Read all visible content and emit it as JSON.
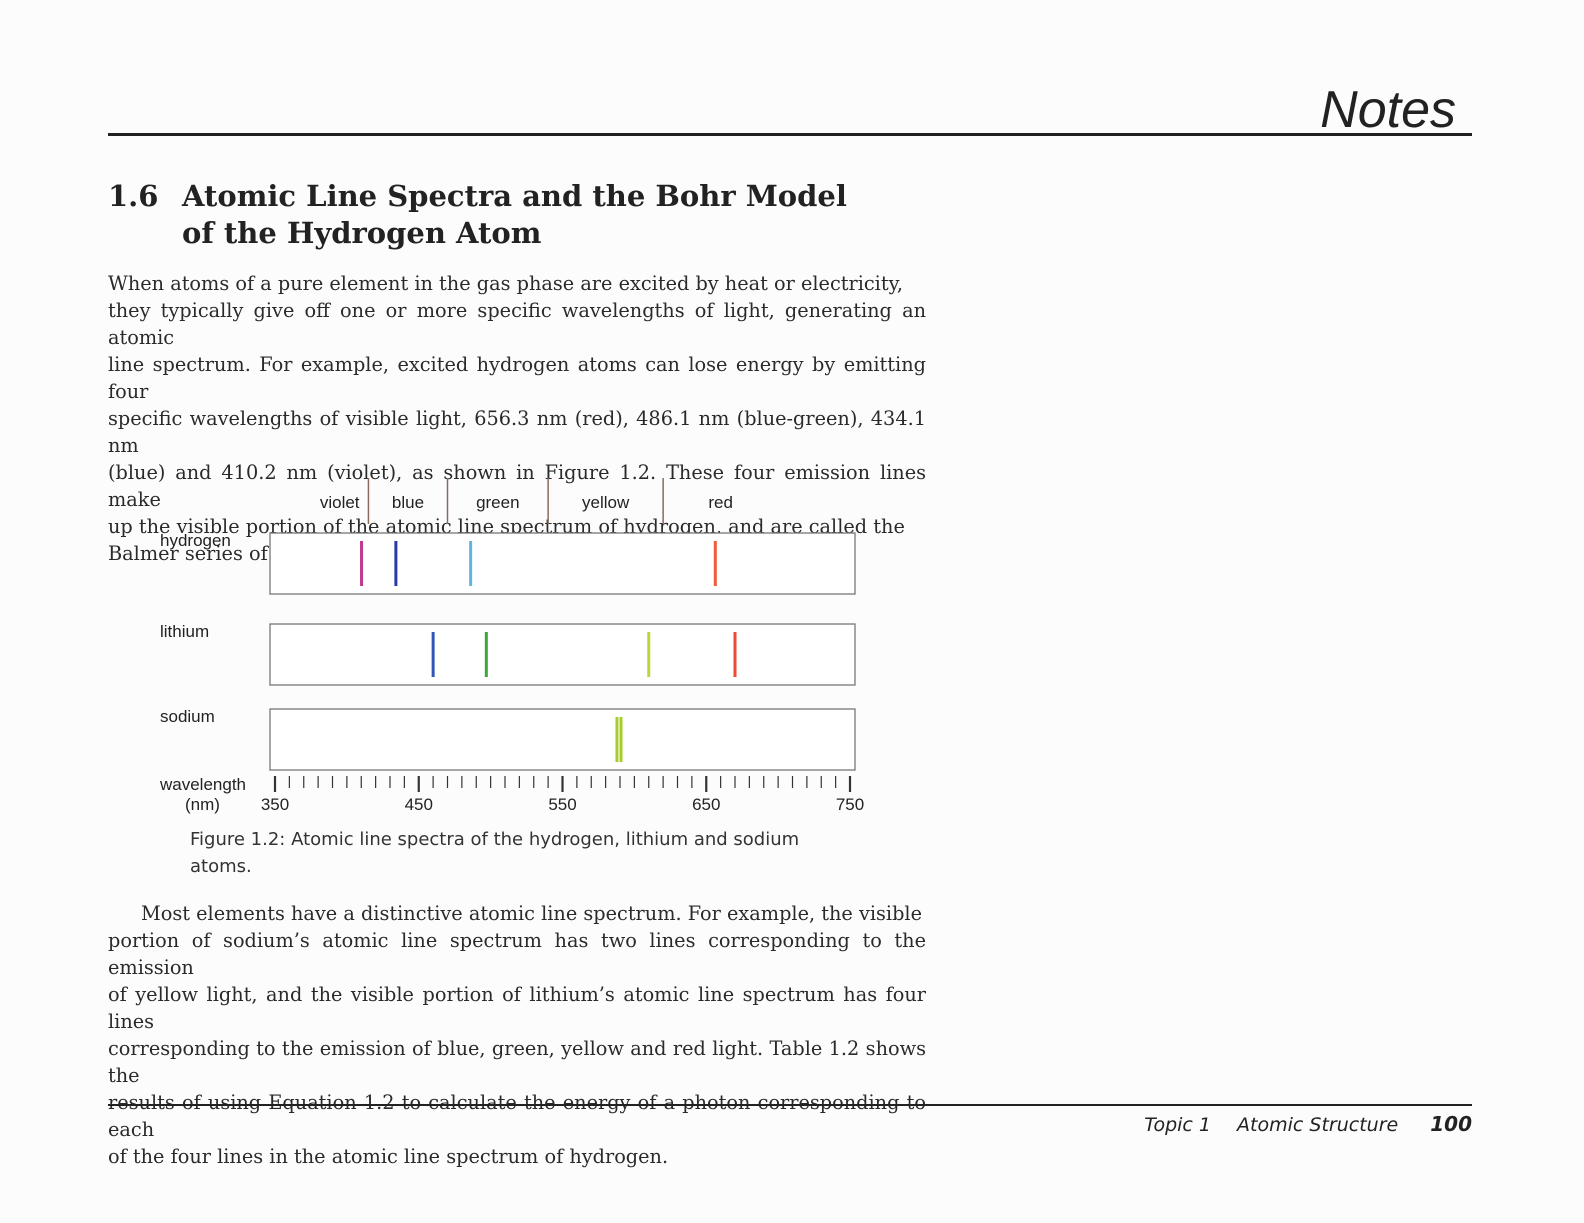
{
  "header": {
    "notes_title": "Notes"
  },
  "section": {
    "number": "1.6",
    "title_line1": "Atomic Line Spectra and the Bohr Model",
    "title_line2": "of the Hydrogen Atom"
  },
  "paragraph1": [
    "When atoms of a pure element in the gas phase are excited by heat or electricity,",
    "they typically give off one or more specific wavelengths of light, generating an atomic",
    "line spectrum. For example, excited hydrogen atoms can lose energy by emitting four",
    "specific wavelengths of visible light, 656.3 nm (red), 486.1 nm (blue-green), 434.1 nm",
    "(blue) and 410.2 nm (violet), as shown in Figure 1.2. These four emission lines make",
    "up the visible portion of the atomic line spectrum of hydrogen, and are called the",
    "Balmer series of emissions."
  ],
  "figure": {
    "caption_line1": "Figure 1.2: Atomic line spectra of the hydrogen, lithium and sodium",
    "caption_line2": "atoms.",
    "color_bands": [
      {
        "label": "violet",
        "to": 415
      },
      {
        "label": "blue",
        "from": 415,
        "to": 470
      },
      {
        "label": "green",
        "from": 470,
        "to": 540
      },
      {
        "label": "yellow",
        "from": 540,
        "to": 620
      },
      {
        "label": "red",
        "from": 620
      }
    ],
    "axis": {
      "label_line1": "wavelength",
      "label_line2": "(nm)",
      "min": 350,
      "max": 750,
      "major_ticks": [
        350,
        450,
        550,
        650,
        750
      ],
      "minor_step": 10
    },
    "spectra": [
      {
        "element": "hydrogen",
        "lines": [
          {
            "nm": 410.2,
            "color": "#c0398e"
          },
          {
            "nm": 434.1,
            "color": "#2a3aa0"
          },
          {
            "nm": 486.1,
            "color": "#5ab8e0"
          },
          {
            "nm": 656.3,
            "color": "#ee5a3a"
          }
        ]
      },
      {
        "element": "lithium",
        "lines": [
          {
            "nm": 460,
            "color": "#2f56b8"
          },
          {
            "nm": 497,
            "color": "#3aa83a"
          },
          {
            "nm": 610,
            "color": "#b8d83a"
          },
          {
            "nm": 670,
            "color": "#ee4a35"
          }
        ]
      },
      {
        "element": "sodium",
        "lines": [
          {
            "nm": 589.0,
            "color": "#a8cc2a"
          },
          {
            "nm": 589.6,
            "color": "#a8cc2a"
          }
        ]
      }
    ]
  },
  "paragraph2": [
    "Most elements have a distinctive atomic line spectrum. For example, the visible",
    "portion of sodium’s atomic line spectrum has two lines corresponding to the emission",
    "of yellow light, and the visible portion of lithium’s atomic line spectrum has four lines",
    "corresponding to the emission of blue, green, yellow and red light. Table 1.2 shows the",
    "results of using Equation 1.2 to calculate the energy of a photon corresponding to each",
    "of the four lines in the atomic line spectrum of hydrogen."
  ],
  "footer": {
    "chapter": "Topic 1",
    "title": "Atomic Structure",
    "page": "100"
  }
}
